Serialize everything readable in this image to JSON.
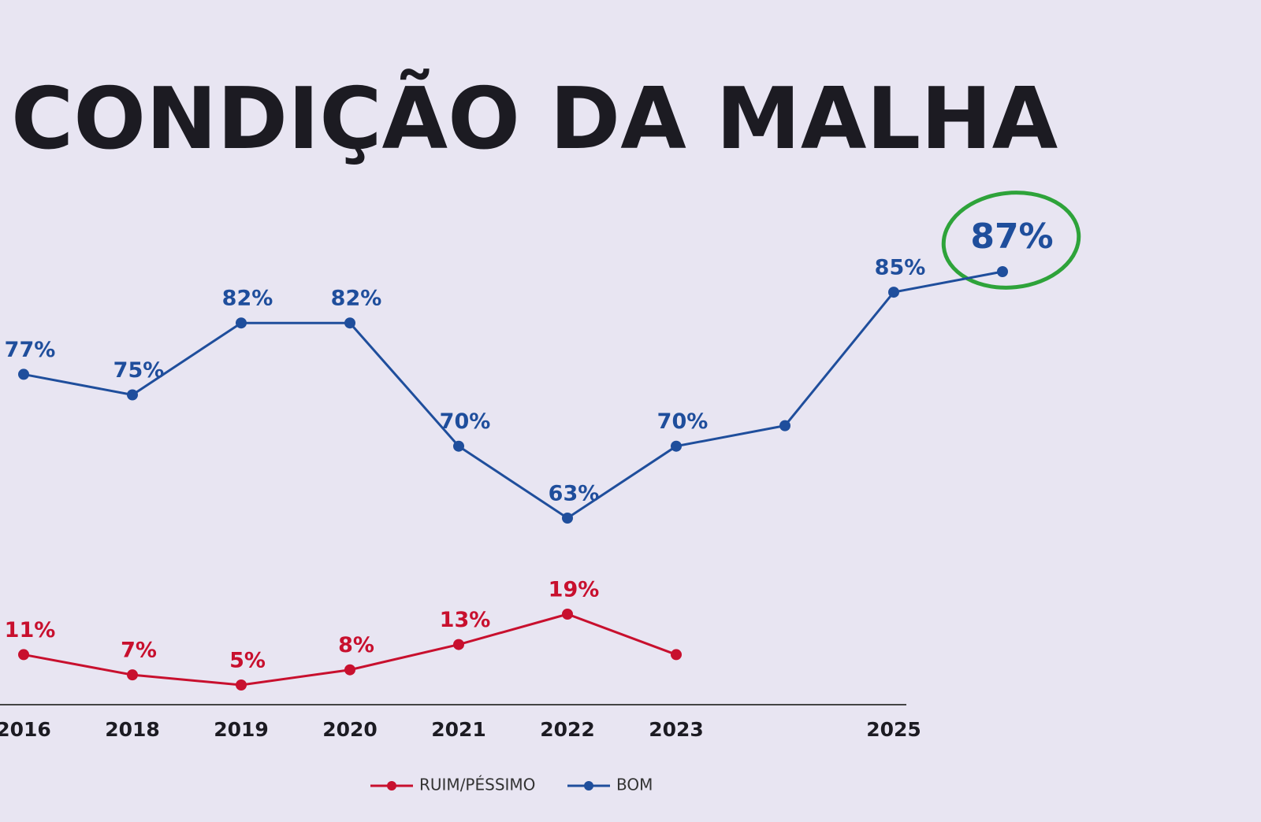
{
  "chart_data": {
    "type": "line",
    "title": "CONDIÇÃO DA MALHA",
    "categories": [
      "2016",
      "2018",
      "2019",
      "2020",
      "2021",
      "2022",
      "2023",
      null,
      "2025",
      null
    ],
    "series": [
      {
        "name": "RUIM/PÉSSIMO",
        "color": "#c8102e",
        "values": [
          11,
          7,
          5,
          8,
          13,
          19,
          11,
          null,
          null,
          null
        ],
        "value_labels": [
          "11%",
          "7%",
          "5%",
          "8%",
          "13%",
          "19%",
          null,
          null,
          null,
          null
        ]
      },
      {
        "name": "BOM",
        "color": "#1f4e9c",
        "values": [
          77,
          75,
          82,
          82,
          70,
          63,
          70,
          72,
          85,
          87
        ],
        "value_labels": [
          "77%",
          "75%",
          "82%",
          "82%",
          "70%",
          "63%",
          "70%",
          null,
          "85%",
          "87%"
        ]
      }
    ]
  }
}
